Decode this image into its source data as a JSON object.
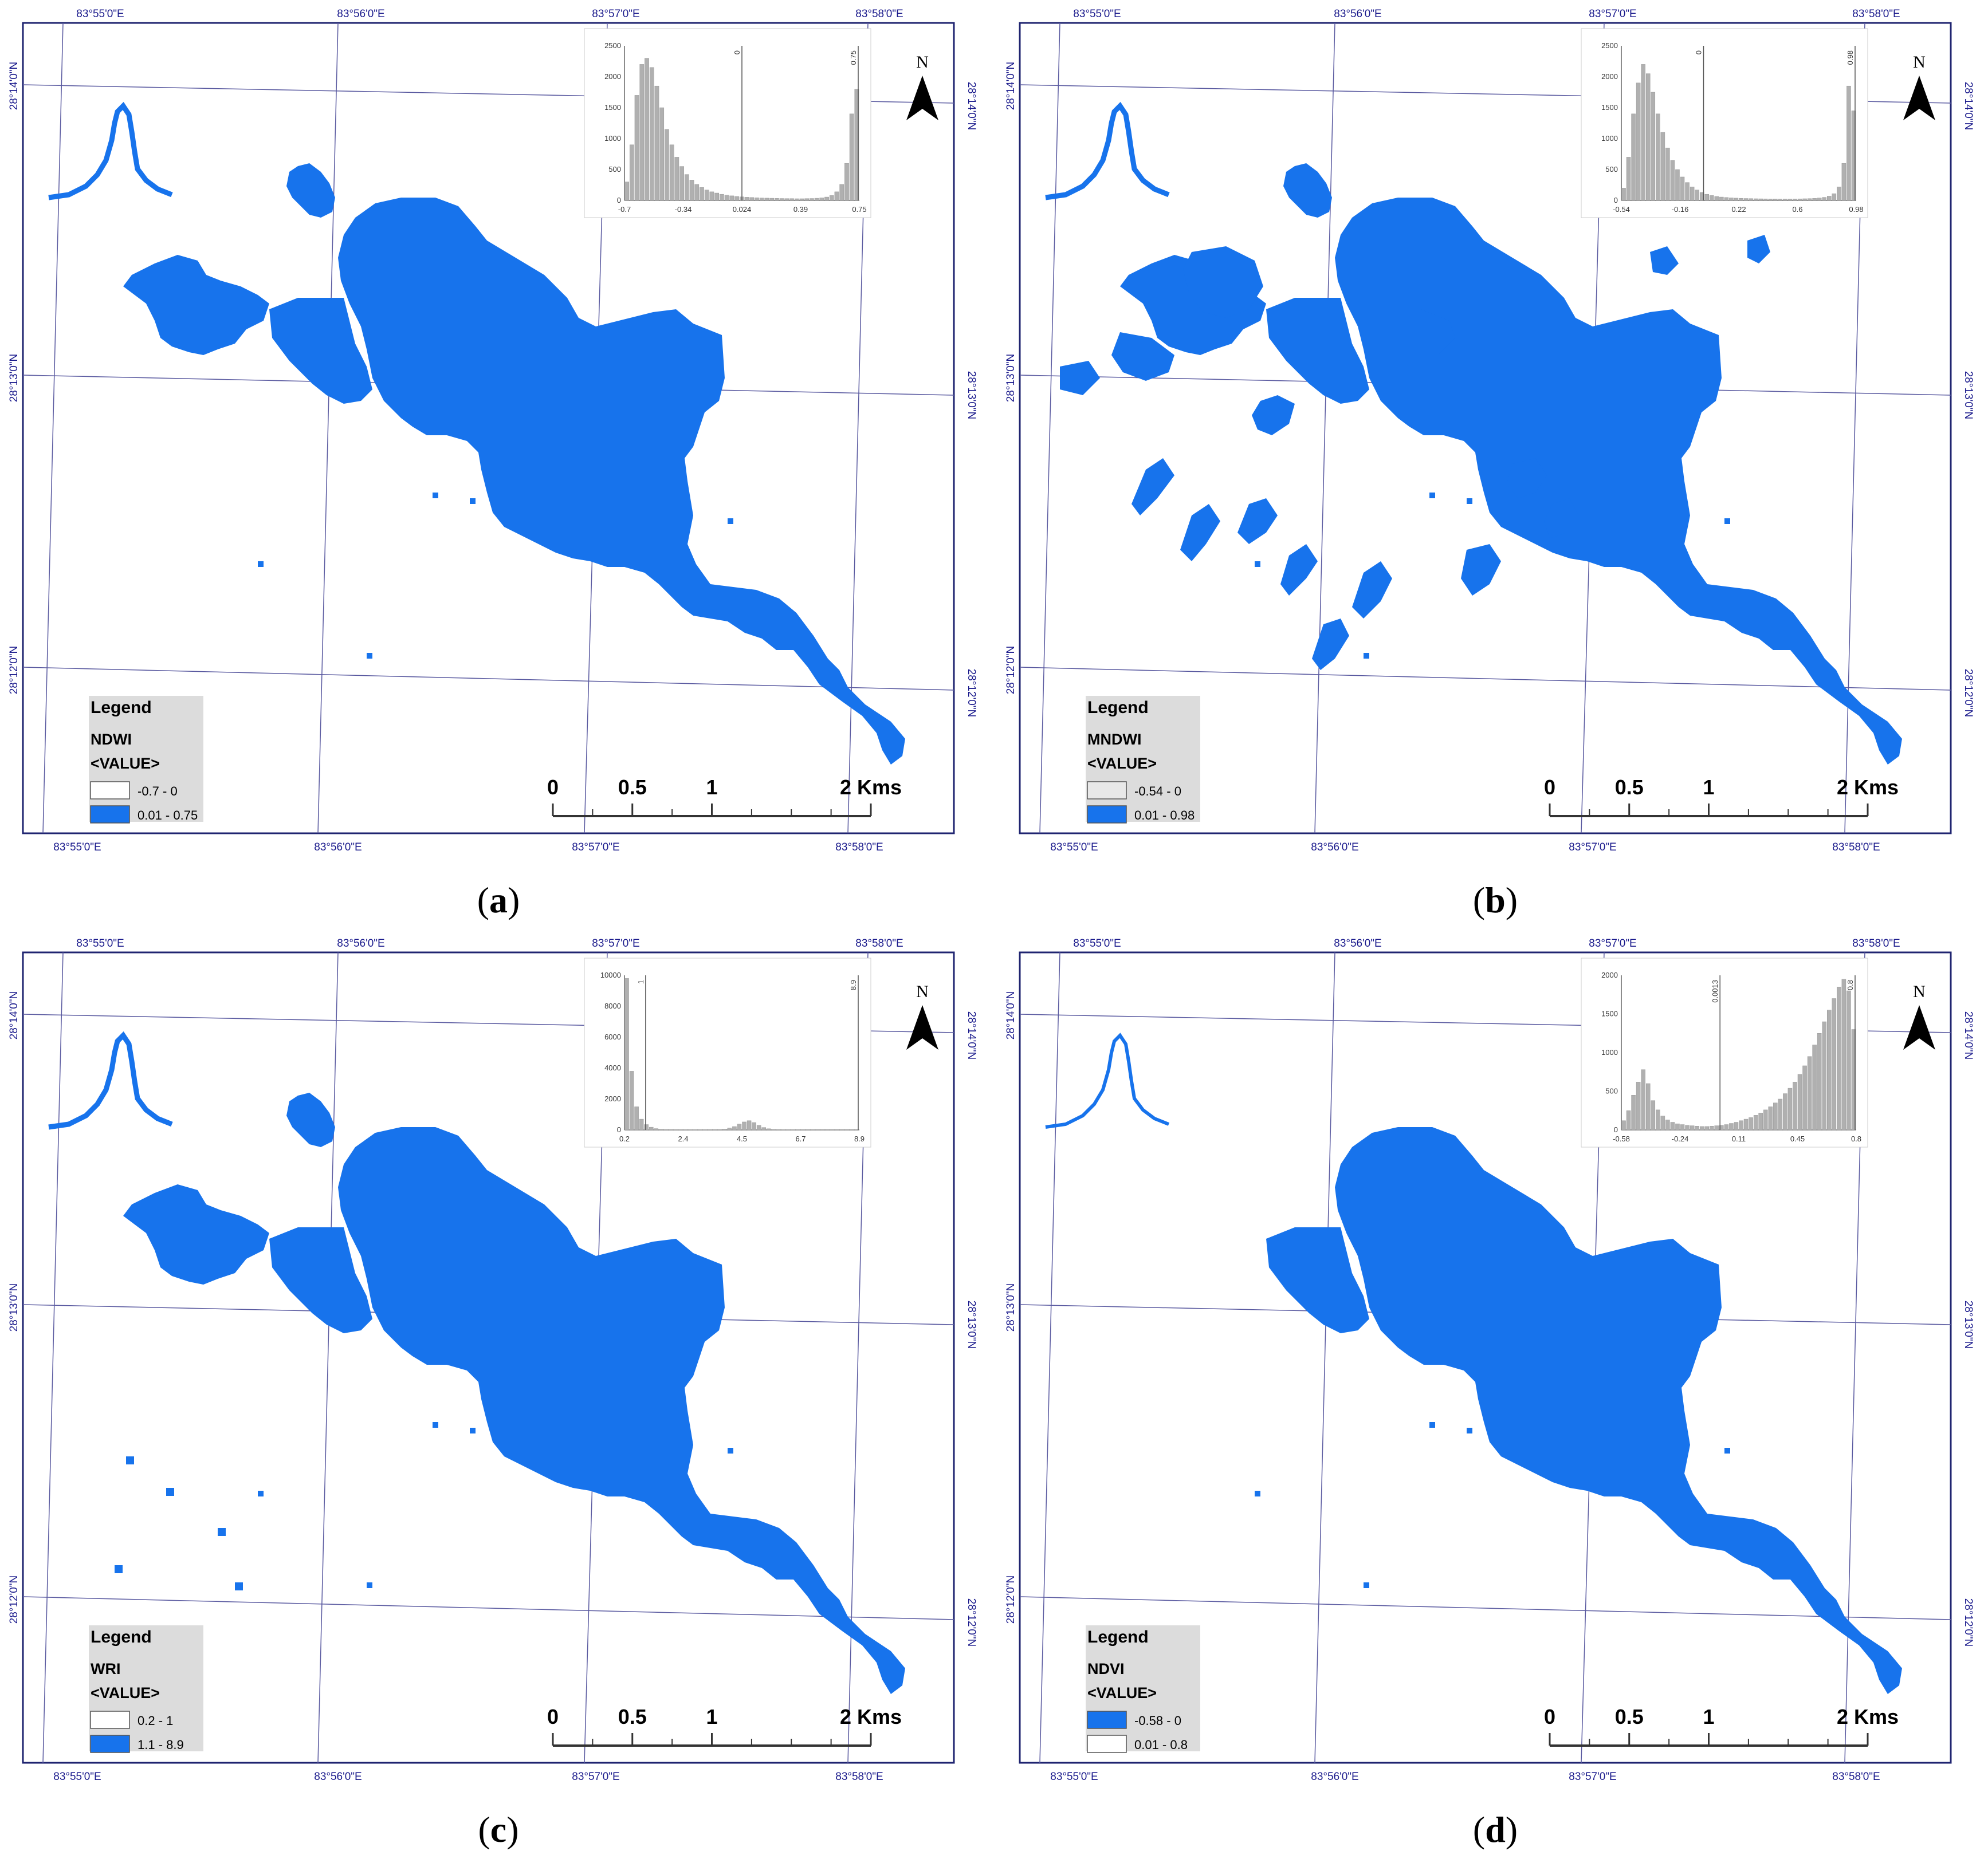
{
  "coords": {
    "lon": [
      "83°55'0\"E",
      "83°56'0\"E",
      "83°57'0\"E",
      "83°58'0\"E"
    ],
    "lat": [
      "28°14'0\"N",
      "28°13'0\"N",
      "28°12'0\"N"
    ]
  },
  "scalebar": {
    "labels": [
      "0",
      "0.5",
      "1",
      "2 Kms"
    ]
  },
  "north_label": "N",
  "legend_title": "Legend",
  "legend_value_label": "<VALUE>",
  "colors": {
    "water": "#1773ec",
    "frame": "#1f2470",
    "grid": "#5a5aa0",
    "coord_text": "#1a1a8c"
  },
  "panels": [
    {
      "label": "a",
      "index": "NDWI",
      "classes": [
        {
          "range": "-0.7 - 0",
          "color": "#ffffff"
        },
        {
          "range": "0.01 - 0.75",
          "color": "#1773ec"
        }
      ],
      "histogram": {
        "y_ticks": [
          "2500",
          "2000",
          "1500",
          "1000",
          "500",
          "0"
        ],
        "y_max": 2500,
        "x_ticks": [
          "-0.7",
          "-0.34",
          "0.024",
          "0.39",
          "0.75"
        ],
        "threshold_label": "0",
        "max_label": "0.75",
        "threshold_pos": 0.5,
        "bars": [
          300,
          900,
          1700,
          2200,
          2300,
          2150,
          1850,
          1500,
          1150,
          900,
          700,
          550,
          420,
          330,
          260,
          210,
          170,
          140,
          120,
          100,
          85,
          75,
          65,
          58,
          52,
          48,
          44,
          40,
          38,
          36,
          34,
          32,
          30,
          30,
          28,
          28,
          30,
          32,
          36,
          42,
          55,
          80,
          140,
          260,
          600,
          1400,
          1800
        ]
      }
    },
    {
      "label": "b",
      "index": "MNDWI",
      "classes": [
        {
          "range": "-0.54 - 0",
          "color": "#e8e8e8"
        },
        {
          "range": "0.01 - 0.98",
          "color": "#1773ec"
        }
      ],
      "histogram": {
        "y_ticks": [
          "2500",
          "2000",
          "1500",
          "1000",
          "500",
          "0"
        ],
        "y_max": 2500,
        "x_ticks": [
          "-0.54",
          "-0.16",
          "0.22",
          "0.6",
          "0.98"
        ],
        "threshold_label": "0",
        "max_label": "0.98",
        "threshold_pos": 0.35,
        "bars": [
          200,
          700,
          1400,
          1900,
          2200,
          2050,
          1750,
          1400,
          1100,
          850,
          650,
          500,
          380,
          290,
          220,
          170,
          130,
          100,
          80,
          65,
          55,
          48,
          42,
          38,
          35,
          32,
          30,
          28,
          27,
          26,
          25,
          25,
          24,
          24,
          24,
          25,
          26,
          28,
          30,
          34,
          40,
          50,
          70,
          110,
          220,
          600,
          1850,
          1450
        ]
      }
    },
    {
      "label": "c",
      "index": "WRI",
      "classes": [
        {
          "range": "0.2 - 1",
          "color": "#ffffff"
        },
        {
          "range": "1.1 - 8.9",
          "color": "#1773ec"
        }
      ],
      "histogram": {
        "y_ticks": [
          "10000",
          "8000",
          "6000",
          "4000",
          "2000",
          "0"
        ],
        "y_max": 10000,
        "x_ticks": [
          "0.2",
          "2.4",
          "4.5",
          "6.7",
          "8.9"
        ],
        "threshold_label": "1",
        "max_label": "8.9",
        "threshold_pos": 0.09,
        "bars": [
          9800,
          3800,
          1500,
          700,
          350,
          180,
          90,
          50,
          30,
          20,
          15,
          12,
          10,
          10,
          10,
          10,
          12,
          15,
          20,
          30,
          60,
          120,
          220,
          380,
          520,
          600,
          480,
          300,
          160,
          80,
          40,
          20,
          10,
          8,
          6,
          5,
          4,
          3,
          3,
          2,
          2,
          2,
          2,
          2,
          2,
          2,
          2,
          2
        ]
      }
    },
    {
      "label": "d",
      "index": "NDVI",
      "classes": [
        {
          "range": "-0.58 - 0",
          "color": "#1773ec"
        },
        {
          "range": "0.01 - 0.8",
          "color": "#ffffff"
        }
      ],
      "histogram": {
        "y_ticks": [
          "2000",
          "1500",
          "1000",
          "500",
          "0"
        ],
        "y_max": 2000,
        "x_ticks": [
          "-0.58",
          "-0.24",
          "0.11",
          "0.45",
          "0.8"
        ],
        "threshold_label": "0.0013",
        "max_label": "0.8",
        "threshold_pos": 0.42,
        "bars": [
          120,
          250,
          450,
          620,
          780,
          600,
          380,
          260,
          180,
          130,
          100,
          80,
          70,
          60,
          55,
          50,
          45,
          45,
          50,
          55,
          60,
          70,
          85,
          100,
          120,
          140,
          160,
          190,
          220,
          260,
          300,
          350,
          400,
          470,
          540,
          620,
          720,
          830,
          950,
          1100,
          1250,
          1400,
          1550,
          1700,
          1850,
          1950,
          1800,
          1300
        ]
      }
    }
  ]
}
